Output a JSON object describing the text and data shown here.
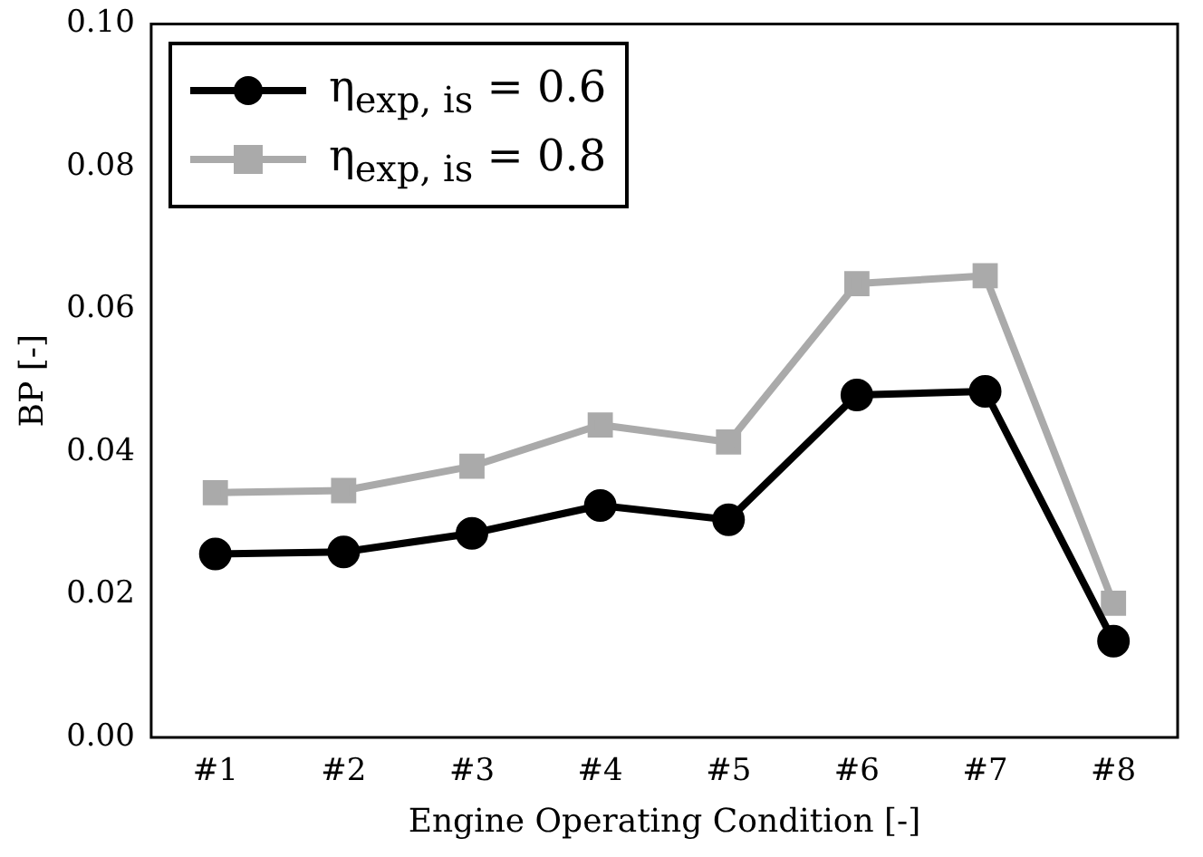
{
  "chart_data": {
    "type": "line",
    "xlabel": "Engine Operating Condition [-]",
    "ylabel": "BP [-]",
    "categories": [
      "#1",
      "#2",
      "#3",
      "#4",
      "#5",
      "#6",
      "#7",
      "#8"
    ],
    "series": [
      {
        "name": "η$_{exp, is}$ = 0.6",
        "color": "#000000",
        "marker": "circle",
        "values": [
          0.0257,
          0.026,
          0.0286,
          0.0325,
          0.0305,
          0.048,
          0.0485,
          0.0135
        ]
      },
      {
        "name": "η$_{exp, is}$ = 0.8",
        "color": "#aaaaaa",
        "marker": "square",
        "values": [
          0.0343,
          0.0346,
          0.038,
          0.0438,
          0.0414,
          0.0636,
          0.0647,
          0.0188
        ]
      }
    ],
    "ylim": [
      0,
      0.1
    ],
    "yticks": [
      {
        "value": 0,
        "label": "0.00"
      },
      {
        "value": 0.02,
        "label": "0.02"
      },
      {
        "value": 0.04,
        "label": "0.04"
      },
      {
        "value": 0.06,
        "label": "0.06"
      },
      {
        "value": 0.08,
        "label": "0.08"
      },
      {
        "value": 0.1,
        "label": "0.10"
      }
    ],
    "grid": false,
    "legend": "top left",
    "line_style": "solid"
  }
}
